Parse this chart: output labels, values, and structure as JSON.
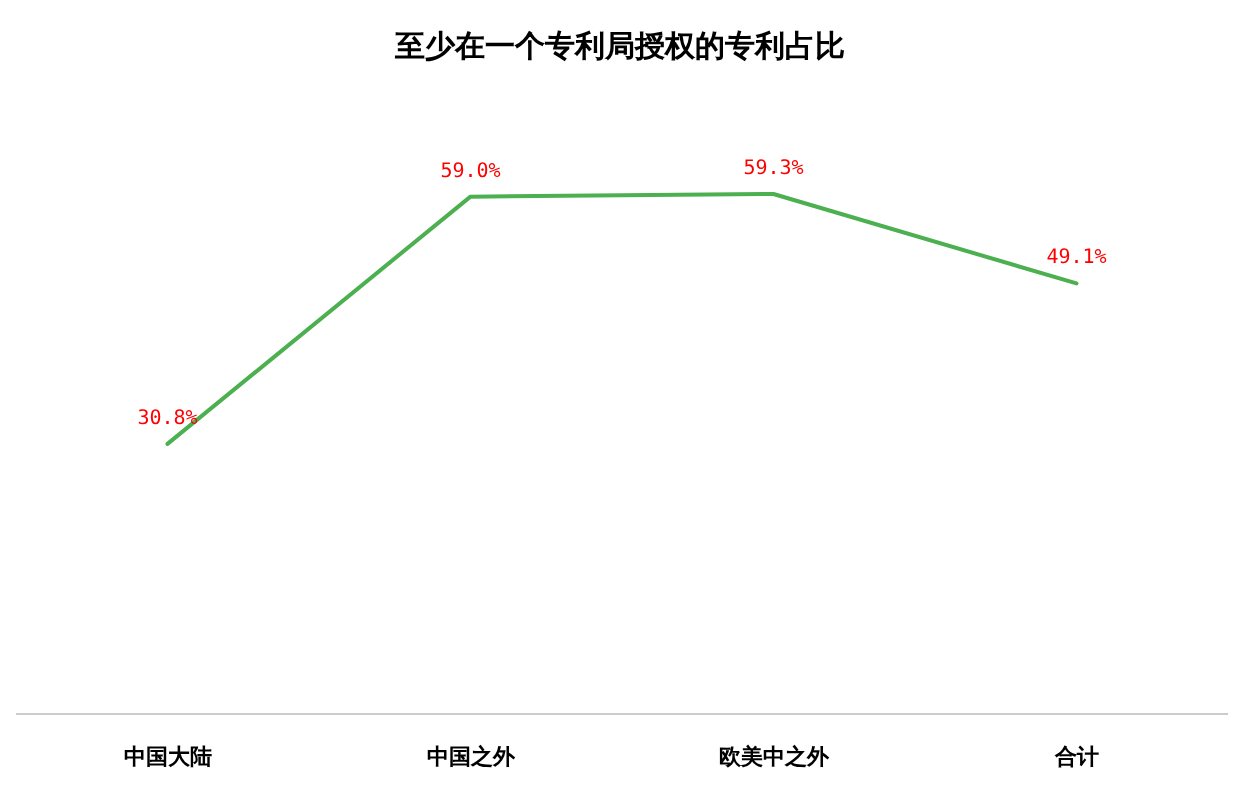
{
  "chart_data": {
    "type": "line",
    "title": "至少在一个专利局授权的专利占比",
    "categories": [
      "中国大陆",
      "中国之外",
      "欧美中之外",
      "合计"
    ],
    "series": [
      {
        "color": "#4caf50",
        "values": [
          30.8,
          59.0,
          59.3,
          49.1
        ],
        "value_labels": [
          "30.8%",
          "59.0%",
          "59.3%",
          "49.1%"
        ]
      }
    ],
    "tick_labels": "x",
    "marker": "none",
    "line_style": "solid"
  }
}
